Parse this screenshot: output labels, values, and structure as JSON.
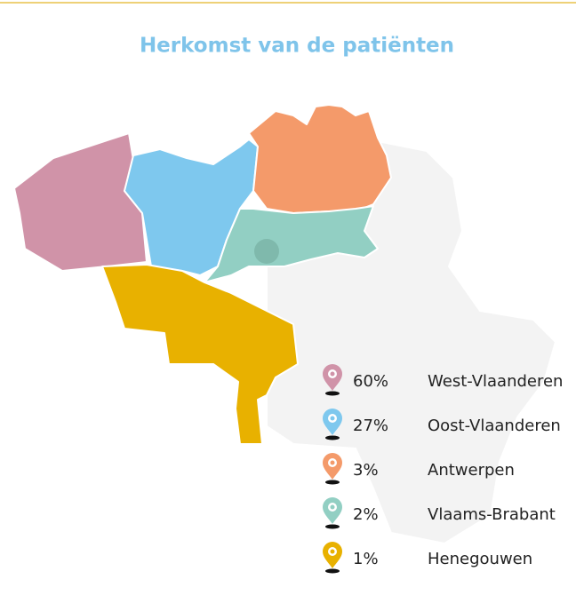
{
  "title": "Herkomst van de patiënten",
  "legend": [
    {
      "percent": "60%",
      "name": "West-Vlaanderen",
      "color": "#d093a8"
    },
    {
      "percent": "27%",
      "name": "Oost-Vlaanderen",
      "color": "#7ec8ee"
    },
    {
      "percent": "3%",
      "name": "Antwerpen",
      "color": "#f49a6a"
    },
    {
      "percent": "2%",
      "name": "Vlaams-Brabant",
      "color": "#92cfc3"
    },
    {
      "percent": "1%",
      "name": "Henegouwen",
      "color": "#e8b100"
    }
  ]
}
